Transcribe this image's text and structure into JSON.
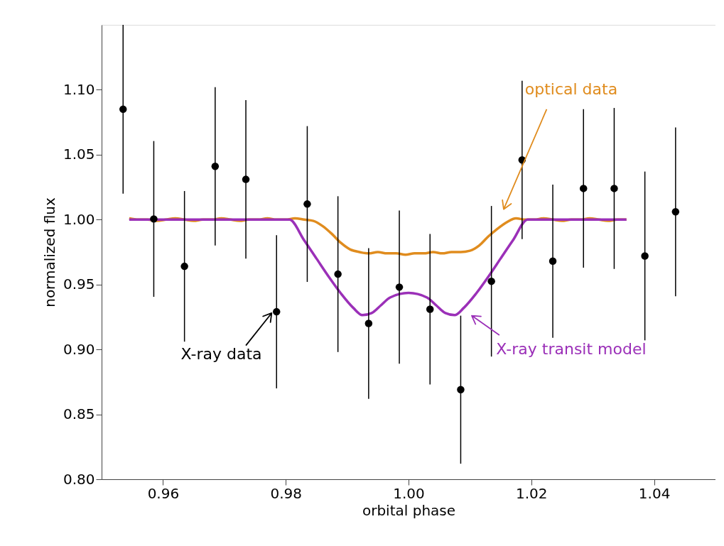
{
  "chart_data": {
    "type": "scatter",
    "xlabel": "orbital phase",
    "ylabel": "normalized flux",
    "xlim": [
      0.95,
      1.05
    ],
    "ylim": [
      0.8,
      1.15
    ],
    "xticks": [
      {
        "value": 0.96,
        "label": "0.96"
      },
      {
        "value": 0.98,
        "label": "0.98"
      },
      {
        "value": 1.0,
        "label": "1.00"
      },
      {
        "value": 1.02,
        "label": "1.02"
      },
      {
        "value": 1.04,
        "label": "1.04"
      }
    ],
    "yticks": [
      {
        "value": 0.8,
        "label": "0.80"
      },
      {
        "value": 0.85,
        "label": "0.85"
      },
      {
        "value": 0.9,
        "label": "0.90"
      },
      {
        "value": 0.95,
        "label": "0.95"
      },
      {
        "value": 1.0,
        "label": "1.00"
      },
      {
        "value": 1.05,
        "label": "1.05"
      },
      {
        "value": 1.1,
        "label": "1.10"
      }
    ],
    "grid": false,
    "legend": "bottom",
    "series": [
      {
        "name": "optical data",
        "type": "line",
        "color": "#e08c1e",
        "marker": "none",
        "line_style": "solid",
        "x": [
          0.9545,
          0.956,
          0.9575,
          0.959,
          0.9605,
          0.962,
          0.9635,
          0.965,
          0.9665,
          0.968,
          0.9695,
          0.971,
          0.9725,
          0.974,
          0.9755,
          0.977,
          0.9785,
          0.98,
          0.9815,
          0.983,
          0.9845,
          0.986,
          0.9875,
          0.989,
          0.9905,
          0.992,
          0.9935,
          0.995,
          0.9965,
          0.998,
          0.9995,
          1.001,
          1.0025,
          1.004,
          1.0055,
          1.007,
          1.0085,
          1.01,
          1.0115,
          1.013,
          1.0145,
          1.016,
          1.0175,
          1.019,
          1.0205,
          1.022,
          1.0235,
          1.025,
          1.0265,
          1.028,
          1.0295,
          1.031,
          1.0325,
          1.034,
          1.0355
        ],
        "values": [
          1.001,
          1.0,
          1.0,
          0.999,
          1.0,
          1.001,
          1.0,
          0.999,
          1.0,
          1.0,
          1.001,
          1.0,
          0.999,
          1.0,
          1.0,
          1.001,
          1.0,
          1.0,
          1.001,
          1.0,
          0.999,
          0.995,
          0.989,
          0.982,
          0.977,
          0.975,
          0.974,
          0.975,
          0.974,
          0.974,
          0.973,
          0.974,
          0.974,
          0.975,
          0.974,
          0.975,
          0.975,
          0.976,
          0.98,
          0.987,
          0.993,
          0.998,
          1.001,
          1.0,
          1.0,
          1.001,
          1.0,
          0.999,
          1.0,
          1.0,
          1.001,
          1.0,
          0.999,
          1.0,
          1.0
        ]
      },
      {
        "name": "X-ray transit model",
        "type": "line",
        "color": "#9b30b8",
        "marker": "none",
        "line_style": "solid",
        "x": [
          0.9545,
          0.9806,
          0.983,
          0.985,
          0.987,
          0.989,
          0.991,
          0.9925,
          0.994,
          0.9955,
          0.997,
          1.0,
          1.003,
          1.0045,
          1.006,
          1.0075,
          1.009,
          1.011,
          1.013,
          1.015,
          1.017,
          1.0194,
          1.0355
        ],
        "values": [
          1.0,
          1.0,
          0.984,
          0.97,
          0.956,
          0.943,
          0.932,
          0.9264,
          0.928,
          0.934,
          0.94,
          0.9435,
          0.94,
          0.934,
          0.928,
          0.9264,
          0.932,
          0.943,
          0.956,
          0.97,
          0.984,
          1.0,
          1.0
        ]
      },
      {
        "name": "X-ray data",
        "color": "#000000",
        "marker": "circle",
        "x": [
          0.9535,
          0.9585,
          0.9635,
          0.9685,
          0.9735,
          0.9785,
          0.9835,
          0.9885,
          0.9935,
          0.9985,
          1.0035,
          1.0085,
          1.0135,
          1.0185,
          1.0235,
          1.0285,
          1.0335,
          1.0385,
          1.0435
        ],
        "values": [
          1.085,
          1.0005,
          0.964,
          1.041,
          1.031,
          0.929,
          1.012,
          0.958,
          0.92,
          0.948,
          0.931,
          0.869,
          0.9525,
          1.046,
          0.968,
          1.024,
          1.024,
          0.972,
          1.006
        ],
        "errors": [
          0.065,
          0.06,
          0.058,
          0.061,
          0.061,
          0.059,
          0.06,
          0.06,
          0.058,
          0.059,
          0.058,
          0.057,
          0.058,
          0.061,
          0.059,
          0.061,
          0.062,
          0.065,
          0.065
        ]
      }
    ]
  }
}
